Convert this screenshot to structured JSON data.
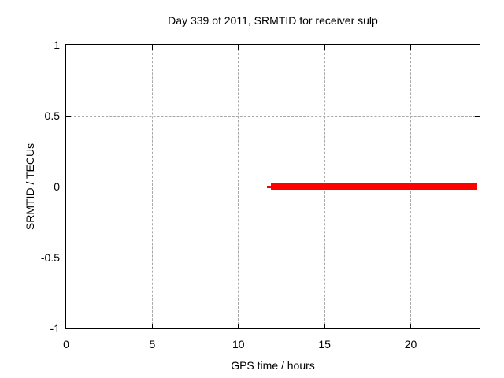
{
  "chart_data": {
    "type": "line",
    "title": "Day 339 of 2011, SRMTID for receiver sulp",
    "xlabel": "GPS time / hours",
    "ylabel": "SRMTID / TECUs",
    "xlim": [
      0,
      24
    ],
    "ylim": [
      -1,
      1
    ],
    "x_ticks": [
      "0",
      "5",
      "10",
      "15",
      "20"
    ],
    "x_tick_values": [
      0,
      5,
      10,
      15,
      20
    ],
    "y_ticks": [
      "1",
      "0.5",
      "0",
      "-0.5",
      "-1"
    ],
    "y_tick_values": [
      1,
      0.5,
      0,
      -0.5,
      -1
    ],
    "grid": "dashed, at major ticks",
    "legend": "none",
    "series": [
      {
        "name": "SRMTID",
        "color": "#ff0000",
        "y_value": 0,
        "segments": [
          {
            "x_start": 11.65,
            "x_end": 11.9,
            "linewidth": 3
          },
          {
            "x_start": 11.9,
            "x_end": 23.85,
            "linewidth": 8
          }
        ],
        "description": "constant zero value from ~11.7 h to ~23.9 h GPS time"
      }
    ],
    "colors": {
      "background": "#ffffff",
      "axis": "#000000",
      "text": "#000000",
      "grid": "#a8a8a8",
      "series": "#ff0000"
    }
  }
}
